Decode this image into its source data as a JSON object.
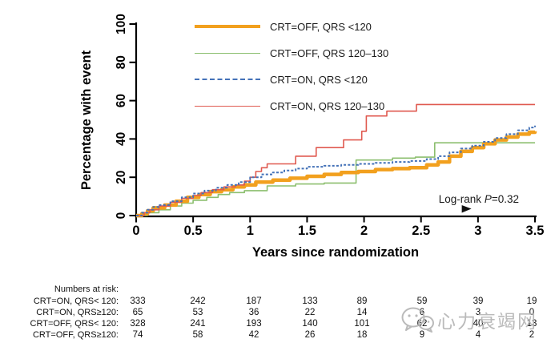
{
  "figure": {
    "y_axis_title": "Percentage with event",
    "x_axis_title": "Years since randomization",
    "logrank": {
      "prefix": "Log-rank ",
      "p": "P",
      "value": "=0.32"
    }
  },
  "chart_data": {
    "type": "line",
    "subtype": "kaplan-meier-step",
    "title": "",
    "xlabel": "Years since randomization",
    "ylabel": "Percentage with event",
    "xlim": [
      0,
      3.5
    ],
    "ylim": [
      0,
      100
    ],
    "x_ticks": [
      0,
      0.5,
      1,
      1.5,
      2,
      2.5,
      3,
      3.5
    ],
    "y_ticks": [
      0,
      20,
      40,
      60,
      80,
      100
    ],
    "grid": false,
    "legend_position": "top-center",
    "annotation": "Log-rank P=0.32",
    "axis_marker_x": 2.9,
    "series": [
      {
        "name": "CRT=OFF, QRS <120",
        "color": "#F2A01E",
        "stroke_width": 4.5,
        "dash": "",
        "points": [
          [
            0,
            0
          ],
          [
            0.05,
            1
          ],
          [
            0.1,
            2.5
          ],
          [
            0.15,
            4
          ],
          [
            0.25,
            5.5
          ],
          [
            0.35,
            7.5
          ],
          [
            0.45,
            9.5
          ],
          [
            0.55,
            11
          ],
          [
            0.65,
            12.5
          ],
          [
            0.75,
            13.5
          ],
          [
            0.85,
            15
          ],
          [
            0.95,
            16
          ],
          [
            1.05,
            17.5
          ],
          [
            1.2,
            18.5
          ],
          [
            1.35,
            19.5
          ],
          [
            1.5,
            20.5
          ],
          [
            1.65,
            21.5
          ],
          [
            1.8,
            22.5
          ],
          [
            1.95,
            23
          ],
          [
            2.1,
            24
          ],
          [
            2.25,
            24.5
          ],
          [
            2.4,
            25
          ],
          [
            2.55,
            26.5
          ],
          [
            2.65,
            28
          ],
          [
            2.75,
            31
          ],
          [
            2.85,
            33.5
          ],
          [
            2.95,
            35.5
          ],
          [
            3.05,
            37.5
          ],
          [
            3.15,
            39.5
          ],
          [
            3.25,
            41
          ],
          [
            3.35,
            42.5
          ],
          [
            3.45,
            43.5
          ],
          [
            3.5,
            44
          ]
        ]
      },
      {
        "name": "CRT=OFF, QRS 120–130",
        "color": "#8CBF6F",
        "stroke_width": 1.6,
        "dash": "",
        "points": [
          [
            0,
            0
          ],
          [
            0.1,
            1.5
          ],
          [
            0.2,
            3
          ],
          [
            0.3,
            5
          ],
          [
            0.4,
            6.5
          ],
          [
            0.5,
            8
          ],
          [
            0.62,
            9.5
          ],
          [
            0.72,
            11
          ],
          [
            0.82,
            12
          ],
          [
            0.95,
            13
          ],
          [
            1.15,
            15.5
          ],
          [
            1.4,
            16.5
          ],
          [
            1.65,
            17
          ],
          [
            1.93,
            29
          ],
          [
            2.25,
            30
          ],
          [
            2.45,
            30.5
          ],
          [
            2.62,
            38
          ],
          [
            3.5,
            38
          ]
        ]
      },
      {
        "name": "CRT=ON, QRS <120",
        "color": "#4472B8",
        "stroke_width": 2,
        "dash": "3 2.2",
        "points": [
          [
            0,
            0
          ],
          [
            0.05,
            1.5
          ],
          [
            0.1,
            3
          ],
          [
            0.15,
            4.5
          ],
          [
            0.2,
            5.5
          ],
          [
            0.3,
            7.5
          ],
          [
            0.4,
            9.5
          ],
          [
            0.5,
            11.5
          ],
          [
            0.6,
            13
          ],
          [
            0.7,
            14.5
          ],
          [
            0.8,
            16
          ],
          [
            0.9,
            17.5
          ],
          [
            1.0,
            20
          ],
          [
            1.1,
            21.5
          ],
          [
            1.2,
            22.5
          ],
          [
            1.3,
            23.5
          ],
          [
            1.4,
            24.5
          ],
          [
            1.5,
            25.5
          ],
          [
            1.65,
            26
          ],
          [
            1.8,
            26.5
          ],
          [
            1.95,
            27
          ],
          [
            2.1,
            27.5
          ],
          [
            2.25,
            28
          ],
          [
            2.4,
            28.5
          ],
          [
            2.55,
            29.5
          ],
          [
            2.65,
            31
          ],
          [
            2.75,
            33
          ],
          [
            2.85,
            35
          ],
          [
            2.95,
            36.5
          ],
          [
            3.05,
            38.5
          ],
          [
            3.15,
            40.5
          ],
          [
            3.25,
            42.5
          ],
          [
            3.35,
            44.5
          ],
          [
            3.45,
            46
          ],
          [
            3.5,
            47
          ]
        ]
      },
      {
        "name": "CRT=ON, QRS 120–130",
        "color": "#E05A50",
        "stroke_width": 1.6,
        "dash": "",
        "points": [
          [
            0,
            0
          ],
          [
            0.07,
            1.5
          ],
          [
            0.12,
            3
          ],
          [
            0.2,
            5
          ],
          [
            0.3,
            7
          ],
          [
            0.4,
            9
          ],
          [
            0.5,
            10.5
          ],
          [
            0.57,
            12
          ],
          [
            0.67,
            13.5
          ],
          [
            0.77,
            15
          ],
          [
            0.87,
            16
          ],
          [
            0.95,
            18
          ],
          [
            1.0,
            20
          ],
          [
            1.05,
            23
          ],
          [
            1.1,
            25
          ],
          [
            1.15,
            27
          ],
          [
            1.4,
            31
          ],
          [
            1.58,
            35.5
          ],
          [
            1.82,
            39.5
          ],
          [
            1.98,
            44
          ],
          [
            2.02,
            52
          ],
          [
            2.2,
            54.5
          ],
          [
            2.46,
            58
          ],
          [
            3.5,
            58
          ]
        ]
      }
    ]
  },
  "risk_table": {
    "title": "Numbers at risk:",
    "time_points": [
      0,
      0.5,
      1,
      1.5,
      2,
      2.5,
      3,
      3.5
    ],
    "rows": [
      {
        "label": "CRT=ON, QRS< 120:",
        "values": [
          "333",
          "242",
          "187",
          "133",
          "89",
          "59",
          "39",
          "19"
        ]
      },
      {
        "label": "CRT=ON, QRS≥120:",
        "values": [
          "65",
          "53",
          "36",
          "22",
          "14",
          "6",
          "3",
          "0"
        ]
      },
      {
        "label": "CRT=OFF, QRS< 120:",
        "values": [
          "328",
          "241",
          "193",
          "140",
          "101",
          "62",
          "40",
          "13"
        ]
      },
      {
        "label": "CRT=OFF, QRS≥120:",
        "values": [
          "74",
          "58",
          "42",
          "26",
          "18",
          "9",
          "4",
          "2"
        ]
      }
    ]
  },
  "watermark": {
    "text": "心力衰竭网",
    "icon": "wechat-icon"
  }
}
